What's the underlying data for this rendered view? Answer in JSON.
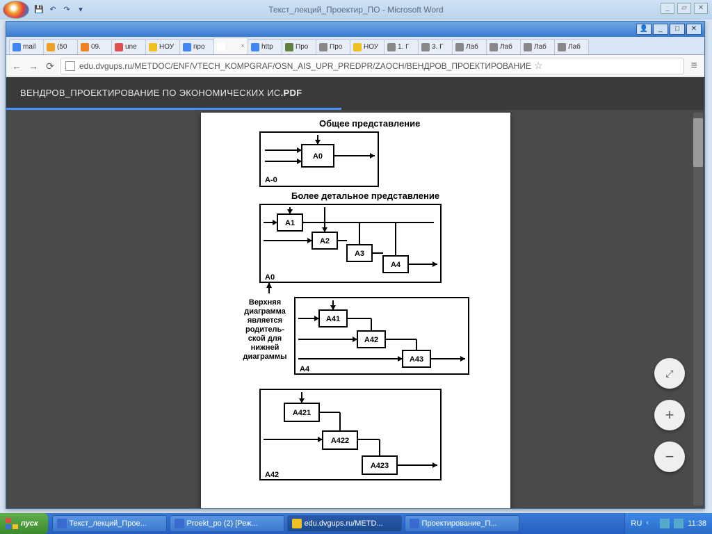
{
  "word": {
    "title": "Текст_лекций_Проектир_ПО - Microsoft Word",
    "qat": [
      "💾",
      "↶",
      "↷",
      "▾"
    ],
    "winbtns": [
      "_",
      "▱",
      "✕"
    ]
  },
  "chrome": {
    "winbtns": [
      "👤",
      "_",
      "□",
      "✕"
    ],
    "tabs": [
      {
        "fav": "#4285f4",
        "label": "mail"
      },
      {
        "fav": "#f0a020",
        "label": "(50"
      },
      {
        "fav": "#f08020",
        "label": "09."
      },
      {
        "fav": "#e05050",
        "label": "une"
      },
      {
        "fav": "#f0c020",
        "label": "НОУ"
      },
      {
        "fav": "#4285f4",
        "label": "про"
      },
      {
        "fav": "#ffffff",
        "label": "",
        "active": true,
        "close": true
      },
      {
        "fav": "#4285f4",
        "label": "http"
      },
      {
        "fav": "#608040",
        "label": "Про"
      },
      {
        "fav": "#888888",
        "label": "Про"
      },
      {
        "fav": "#f0c020",
        "label": "НОУ"
      },
      {
        "fav": "#888888",
        "label": "1. Г"
      },
      {
        "fav": "#888888",
        "label": "3. Г"
      },
      {
        "fav": "#888888",
        "label": "Лаб"
      },
      {
        "fav": "#888888",
        "label": "Лаб"
      },
      {
        "fav": "#888888",
        "label": "Лаб"
      },
      {
        "fav": "#888888",
        "label": "Лаб"
      }
    ],
    "url": "edu.dvgups.ru/METDOC/ENF/VTECH_KOMPGRAF/OSN_AIS_UPR_PREDPR/ZAOCH/ВЕНДРОВ_ПРОЕКТИРОВАНИЕ",
    "pdf_title_a": "ВЕНДРОВ_ПРОЕКТИРОВАНИЕ ПО ЭКОНОМИЧЕСКИХ ИС",
    "pdf_title_b": ".PDF"
  },
  "diagram": {
    "title1": "Общее представление",
    "title2": "Более детальное представление",
    "side_text": [
      "Верхняя",
      "диаграмма",
      "является",
      "родитель-",
      "ской для",
      "нижней",
      "диаграммы"
    ],
    "boxes": {
      "level0": {
        "label": "A-0",
        "blocks": [
          "A0"
        ]
      },
      "level1": {
        "label": "A0",
        "blocks": [
          "A1",
          "A2",
          "A3",
          "A4"
        ]
      },
      "level2": {
        "label": "A4",
        "blocks": [
          "A41",
          "A42",
          "A43"
        ]
      },
      "level3": {
        "label": "A42",
        "blocks": [
          "A421",
          "A422",
          "A423"
        ]
      }
    },
    "stroke": "#000000",
    "fontsize_title": 13,
    "fontsize_block": 11,
    "fontsize_side": 11
  },
  "taskbar": {
    "start": "пуск",
    "tasks": [
      {
        "label": "Текст_лекций_Прое...",
        "ico": "#3a6ad0"
      },
      {
        "label": "Proekt_po (2) [Реж...",
        "ico": "#3a6ad0"
      },
      {
        "label": "edu.dvgups.ru/METD...",
        "ico": "#f0c020",
        "active": true
      },
      {
        "label": "Проектирование_П...",
        "ico": "#3a6ad0"
      }
    ],
    "lang": "RU",
    "clock": "11:38"
  }
}
